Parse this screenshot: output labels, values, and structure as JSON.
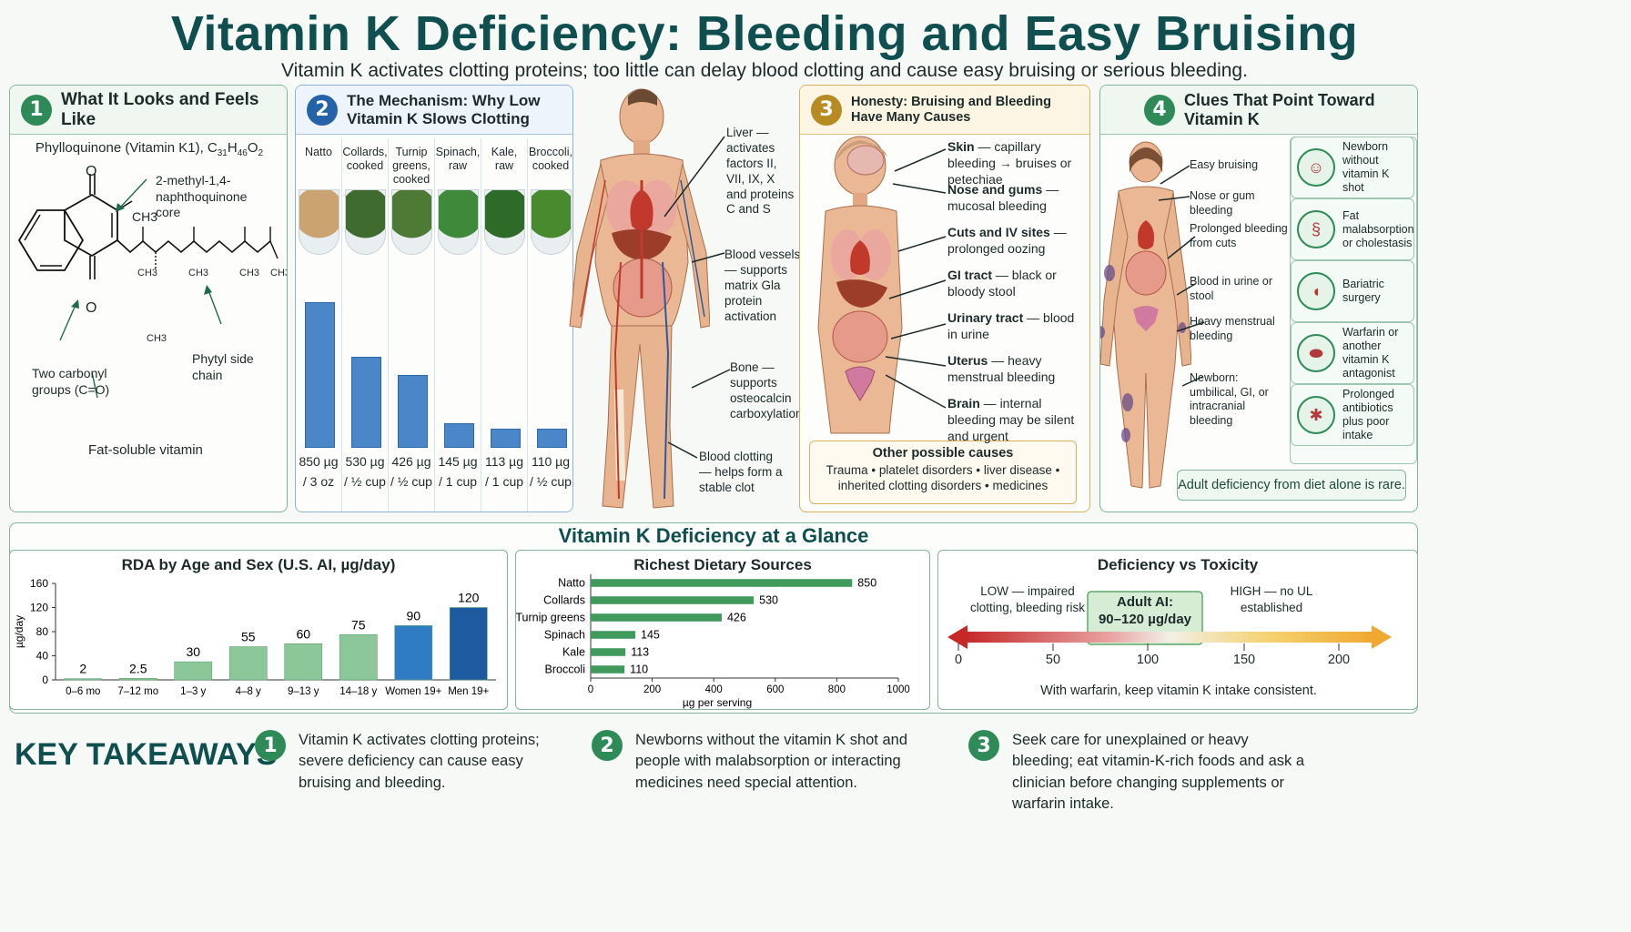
{
  "header": {
    "title": "Vitamin K Deficiency: Bleeding and Easy Bruising",
    "subtitle": "Vitamin K activates clotting proteins; too little can delay blood clotting and cause easy bruising or serious bleeding."
  },
  "panel1": {
    "number": "1",
    "title": "What It Looks and Feels Like",
    "molecule_name": "Phylloquinone (Vitamin K1), C",
    "formula_c": "31",
    "formula_h_prefix": "H",
    "formula_h": "46",
    "formula_o_prefix": "O",
    "formula_o": "2",
    "core_label": "2-methyl-1,4-naphthoquinone core",
    "side_chain_label": "Phytyl side chain",
    "carbonyl_label": "Two carbonyl groups (C=O)",
    "fat_soluble_label": "Fat-soluble vitamin",
    "atom_o": "O",
    "methyl": "CH3"
  },
  "panel2": {
    "number": "2",
    "title": "The Mechanism: Why Low Vitamin K Slows Clotting",
    "foods": [
      {
        "name": "Natto",
        "amount": "850 µg",
        "serving": "/ 3 oz",
        "value": 850
      },
      {
        "name": "Collards, cooked",
        "amount": "530 µg",
        "serving": "/ ½ cup",
        "value": 530
      },
      {
        "name": "Turnip greens, cooked",
        "amount": "426 µg",
        "serving": "/ ½ cup",
        "value": 426
      },
      {
        "name": "Spinach, raw",
        "amount": "145 µg",
        "serving": "/ 1 cup",
        "value": 145
      },
      {
        "name": "Kale, raw",
        "amount": "113 µg",
        "serving": "/ 1 cup",
        "value": 113
      },
      {
        "name": "Broccoli, cooked",
        "amount": "110 µg",
        "serving": "/ ½ cup",
        "value": 110
      }
    ]
  },
  "body_labels": {
    "liver": "Liver — activates factors II, VII, IX, X and proteins C and S",
    "vessels": "Blood vessels — supports matrix Gla protein activation",
    "bone": "Bone — supports osteocalcin carboxylation",
    "clotting": "Blood clotting — helps form a stable clot"
  },
  "panel3": {
    "number": "3",
    "title": "Honesty: Bruising and Bleeding Have Many Causes",
    "causes": [
      {
        "bold": "Skin",
        "text": " — capillary bleeding → bruises or petechiae"
      },
      {
        "bold": "Nose and gums",
        "text": " — mucosal bleeding"
      },
      {
        "bold": "Cuts and IV sites",
        "text": " — prolonged oozing"
      },
      {
        "bold": "GI tract",
        "text": " — black or bloody stool"
      },
      {
        "bold": "Urinary tract",
        "text": " — blood in urine"
      },
      {
        "bold": "Uterus",
        "text": " — heavy menstrual bleeding"
      },
      {
        "bold": "Brain",
        "text": " — internal bleeding may be silent and urgent"
      }
    ],
    "other_title": "Other possible causes",
    "other_line1": "Trauma • platelet disorders • liver disease •",
    "other_line2": "inherited clotting disorders • medicines"
  },
  "panel4": {
    "number": "4",
    "title": "Clues That Point Toward Vitamin K",
    "clues": [
      "Easy bruising",
      "Nose or gum bleeding",
      "Prolonged bleeding from cuts",
      "Blood in urine or stool",
      "Heavy menstrual bleeding",
      "Newborn: umbilical, GI, or intracranial bleeding"
    ],
    "risks": [
      {
        "label": "Newborn without vitamin K shot",
        "icon": "baby-icon"
      },
      {
        "label": "Fat malabsorption or cholestasis",
        "icon": "intestine-icon"
      },
      {
        "label": "Bariatric surgery",
        "icon": "stomach-icon"
      },
      {
        "label": "Warfarin or another vitamin K antagonist",
        "icon": "pill-icon"
      },
      {
        "label": "Prolonged antibiotics plus poor intake",
        "icon": "bacteria-icon"
      }
    ],
    "note": "Adult deficiency from diet alone is rare."
  },
  "glance": {
    "title": "Vitamin K Deficiency at a Glance"
  },
  "rda_chart": {
    "title": "RDA by Age and Sex (U.S. AI, µg/day)",
    "ylabel": "µg/day"
  },
  "sources_chart": {
    "title": "Richest Dietary Sources",
    "xlabel": "µg per serving"
  },
  "toxicity": {
    "title": "Deficiency vs Toxicity",
    "low_label": "LOW — impaired clotting, bleeding risk",
    "adult_label": "Adult AI:",
    "adult_range": "90–120 µg/day",
    "high_label": "HIGH — no UL established",
    "ticks": [
      "0",
      "50",
      "100",
      "150",
      "200"
    ],
    "warfarin_note": "With warfarin, keep vitamin K intake consistent."
  },
  "takeaways": {
    "title": "KEY TAKEAWAYS",
    "items": [
      {
        "num": "1",
        "text": "Vitamin K activates clotting proteins; severe deficiency can cause easy bruising and bleeding."
      },
      {
        "num": "2",
        "text": "Newborns without the vitamin K shot and people with malabsorption or interacting medicines need special attention."
      },
      {
        "num": "3",
        "text": "Seek care for unexplained or heavy bleeding; eat vitamin-K-rich foods and ask a clinician before changing supplements or warfarin intake."
      }
    ]
  },
  "chart_data": [
    {
      "type": "bar",
      "title": "RDA by Age and Sex (U.S. AI, µg/day)",
      "xlabel": "",
      "ylabel": "µg/day",
      "categories": [
        "0–6 mo",
        "7–12 mo",
        "1–3 y",
        "4–8 y",
        "9–13 y",
        "14–18 y",
        "Women 19+",
        "Men 19+"
      ],
      "values": [
        2,
        2.5,
        30,
        55,
        60,
        75,
        90,
        120
      ],
      "value_labels": [
        "2",
        "2.5",
        "30",
        "55",
        "60",
        "75",
        "90",
        "120"
      ],
      "yticks": [
        0,
        40,
        80,
        120,
        160
      ],
      "ytick_labels": [
        "0",
        "40",
        "80",
        "120",
        "160"
      ],
      "ylim": [
        0,
        160
      ],
      "colors": [
        "#8cc79a",
        "#8cc79a",
        "#8cc79a",
        "#8cc79a",
        "#8cc79a",
        "#8cc79a",
        "#2f7cc4",
        "#1d5aa0"
      ]
    },
    {
      "type": "bar",
      "orientation": "horizontal",
      "title": "Richest Dietary Sources",
      "xlabel": "µg per serving",
      "categories": [
        "Natto",
        "Collards",
        "Turnip greens",
        "Spinach",
        "Kale",
        "Broccoli"
      ],
      "values": [
        850,
        530,
        426,
        145,
        113,
        110
      ],
      "value_labels": [
        "850",
        "530",
        "426",
        "145",
        "113",
        "110"
      ],
      "xticks": [
        0,
        200,
        400,
        600,
        800,
        1000
      ],
      "xtick_labels": [
        "0",
        "200",
        "400",
        "600",
        "800",
        "1000"
      ],
      "xlim": [
        0,
        1000
      ],
      "color": "#3f9a5c"
    }
  ]
}
